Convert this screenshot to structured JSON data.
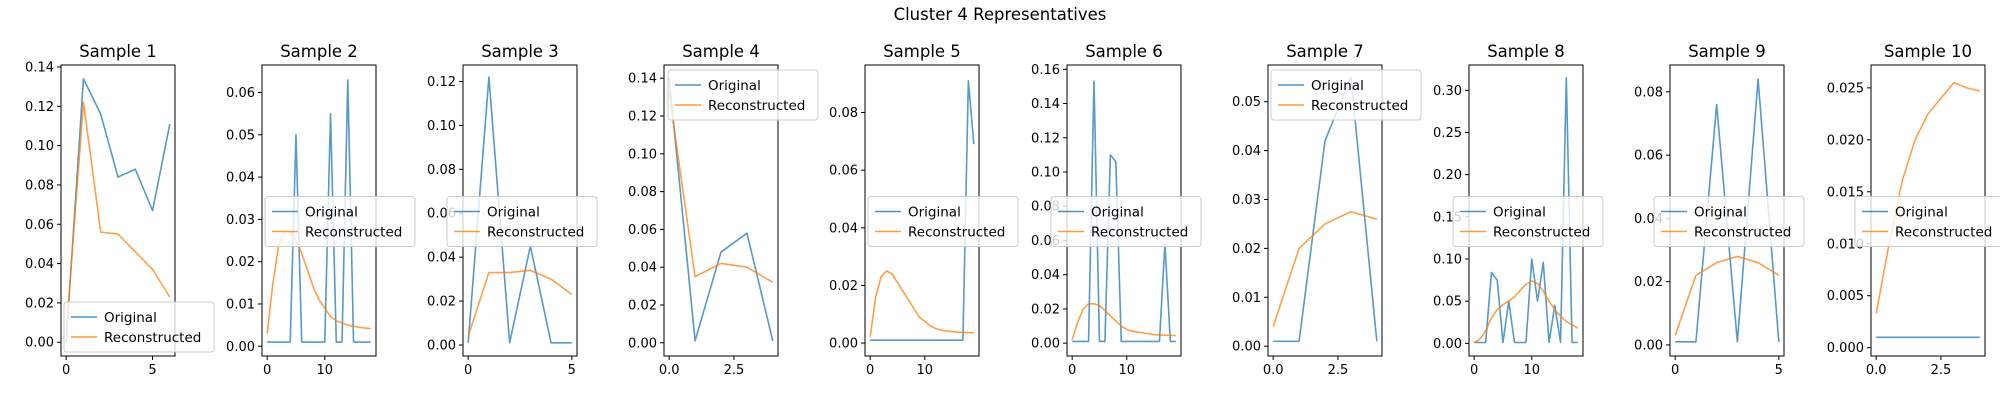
{
  "figure": {
    "title": "Cluster 4 Representatives"
  },
  "colors": {
    "original": "#1f77b4",
    "reconstructed": "#ff7f0e"
  },
  "chart_data": [
    {
      "type": "line",
      "title": "Sample 1",
      "legend": "lower-left",
      "xlim": [
        -0.3,
        6.3
      ],
      "ylim": [
        -0.007,
        0.141
      ],
      "xticks": [
        0,
        5
      ],
      "yticks": [
        0.0,
        0.02,
        0.04,
        0.06,
        0.08,
        0.1,
        0.12,
        0.14
      ],
      "ytick_labels": [
        "0.00",
        "0.02",
        "0.04",
        "0.06",
        "0.08",
        "0.10",
        "0.12",
        "0.14"
      ],
      "series": [
        {
          "name": "Original",
          "x": [
            0,
            1,
            2,
            3,
            4,
            5,
            6
          ],
          "y": [
            0.0,
            0.134,
            0.116,
            0.084,
            0.088,
            0.067,
            0.111
          ]
        },
        {
          "name": "Reconstructed",
          "x": [
            0,
            1,
            2,
            3,
            4,
            5,
            6
          ],
          "y": [
            0.005,
            0.122,
            0.056,
            0.055,
            0.046,
            0.037,
            0.023
          ]
        }
      ]
    },
    {
      "type": "line",
      "title": "Sample 2",
      "legend": "center-left",
      "xlim": [
        -0.9,
        18.9
      ],
      "ylim": [
        -0.0023,
        0.0665
      ],
      "xticks": [
        0,
        10
      ],
      "yticks": [
        0.0,
        0.01,
        0.02,
        0.03,
        0.04,
        0.05,
        0.06
      ],
      "ytick_labels": [
        "0.00",
        "0.01",
        "0.02",
        "0.03",
        "0.04",
        "0.05",
        "0.06"
      ],
      "series": [
        {
          "name": "Original",
          "x": [
            0,
            1,
            2,
            3,
            4,
            5,
            6,
            7,
            8,
            9,
            10,
            11,
            12,
            13,
            14,
            15,
            16,
            17,
            18
          ],
          "y": [
            0.001,
            0.001,
            0.001,
            0.001,
            0.001,
            0.05,
            0.001,
            0.001,
            0.001,
            0.001,
            0.001,
            0.055,
            0.001,
            0.001,
            0.063,
            0.001,
            0.001,
            0.001,
            0.001
          ]
        },
        {
          "name": "Reconstructed",
          "x": [
            0,
            1,
            2,
            3,
            4,
            5,
            6,
            7,
            8,
            9,
            10,
            11,
            12,
            13,
            14,
            15,
            16,
            17,
            18
          ],
          "y": [
            0.003,
            0.015,
            0.024,
            0.027,
            0.027,
            0.025,
            0.022,
            0.018,
            0.014,
            0.011,
            0.009,
            0.007,
            0.006,
            0.0055,
            0.005,
            0.0047,
            0.0045,
            0.0043,
            0.0042
          ]
        }
      ]
    },
    {
      "type": "line",
      "title": "Sample 3",
      "legend": "center",
      "xlim": [
        -0.25,
        5.25
      ],
      "ylim": [
        -0.005,
        0.1275
      ],
      "xticks": [
        0,
        5
      ],
      "yticks": [
        0.0,
        0.02,
        0.04,
        0.06,
        0.08,
        0.1,
        0.12
      ],
      "ytick_labels": [
        "0.00",
        "0.02",
        "0.04",
        "0.06",
        "0.08",
        "0.10",
        "0.12"
      ],
      "series": [
        {
          "name": "Original",
          "x": [
            0,
            1,
            2,
            3,
            4,
            5
          ],
          "y": [
            0.001,
            0.122,
            0.001,
            0.045,
            0.001,
            0.001
          ]
        },
        {
          "name": "Reconstructed",
          "x": [
            0,
            1,
            2,
            3,
            4,
            5
          ],
          "y": [
            0.004,
            0.033,
            0.033,
            0.034,
            0.03,
            0.023
          ]
        }
      ]
    },
    {
      "type": "line",
      "title": "Sample 4",
      "legend": "upper-right",
      "xlim": [
        -0.2,
        4.2
      ],
      "ylim": [
        -0.007,
        0.147
      ],
      "xticks": [
        0,
        2.5
      ],
      "xtick_labels": [
        "0.0",
        "2.5"
      ],
      "yticks": [
        0.0,
        0.02,
        0.04,
        0.06,
        0.08,
        0.1,
        0.12,
        0.14
      ],
      "ytick_labels": [
        "0.00",
        "0.02",
        "0.04",
        "0.06",
        "0.08",
        "0.10",
        "0.12",
        "0.14"
      ],
      "series": [
        {
          "name": "Original",
          "x": [
            0,
            1,
            2,
            3,
            4
          ],
          "y": [
            0.14,
            0.001,
            0.048,
            0.058,
            0.001
          ]
        },
        {
          "name": "Reconstructed",
          "x": [
            0,
            1,
            2,
            3,
            4
          ],
          "y": [
            0.132,
            0.035,
            0.042,
            0.04,
            0.032
          ]
        }
      ]
    },
    {
      "type": "line",
      "title": "Sample 5",
      "legend": "center-left",
      "xlim": [
        -0.95,
        19.95
      ],
      "ylim": [
        -0.0045,
        0.0965
      ],
      "xticks": [
        0,
        10
      ],
      "yticks": [
        0.0,
        0.02,
        0.04,
        0.06,
        0.08
      ],
      "ytick_labels": [
        "0.00",
        "0.02",
        "0.04",
        "0.06",
        "0.08"
      ],
      "series": [
        {
          "name": "Original",
          "x": [
            0,
            1,
            2,
            3,
            4,
            5,
            6,
            7,
            8,
            9,
            10,
            11,
            12,
            13,
            14,
            15,
            16,
            17,
            18,
            19
          ],
          "y": [
            0.001,
            0.001,
            0.001,
            0.001,
            0.001,
            0.001,
            0.001,
            0.001,
            0.001,
            0.001,
            0.001,
            0.001,
            0.001,
            0.001,
            0.001,
            0.001,
            0.001,
            0.001,
            0.091,
            0.069
          ]
        },
        {
          "name": "Reconstructed",
          "x": [
            0,
            1,
            2,
            3,
            4,
            5,
            6,
            7,
            8,
            9,
            10,
            11,
            12,
            13,
            14,
            15,
            16,
            17,
            18,
            19
          ],
          "y": [
            0.002,
            0.016,
            0.023,
            0.025,
            0.024,
            0.021,
            0.018,
            0.015,
            0.012,
            0.009,
            0.0075,
            0.006,
            0.005,
            0.0045,
            0.0042,
            0.004,
            0.0038,
            0.0037,
            0.0036,
            0.0035
          ]
        }
      ]
    },
    {
      "type": "line",
      "title": "Sample 6",
      "legend": "center",
      "xlim": [
        -0.95,
        19.95
      ],
      "ylim": [
        -0.0075,
        0.1625
      ],
      "xticks": [
        0,
        10
      ],
      "yticks": [
        0.0,
        0.02,
        0.04,
        0.06,
        0.08,
        0.1,
        0.12,
        0.14,
        0.16
      ],
      "ytick_labels": [
        "0.00",
        "0.02",
        "0.04",
        "0.06",
        "0.08",
        "0.10",
        "0.12",
        "0.14",
        "0.16"
      ],
      "series": [
        {
          "name": "Original",
          "x": [
            0,
            1,
            2,
            3,
            4,
            5,
            6,
            7,
            8,
            9,
            10,
            11,
            12,
            13,
            14,
            15,
            16,
            17,
            18,
            19
          ],
          "y": [
            0.001,
            0.001,
            0.001,
            0.001,
            0.153,
            0.001,
            0.001,
            0.11,
            0.106,
            0.001,
            0.001,
            0.001,
            0.001,
            0.001,
            0.001,
            0.001,
            0.001,
            0.058,
            0.001,
            0.001
          ]
        },
        {
          "name": "Reconstructed",
          "x": [
            0,
            1,
            2,
            3,
            4,
            5,
            6,
            7,
            8,
            9,
            10,
            11,
            12,
            13,
            14,
            15,
            16,
            17,
            18,
            19
          ],
          "y": [
            0.002,
            0.012,
            0.02,
            0.023,
            0.023,
            0.022,
            0.019,
            0.016,
            0.013,
            0.01,
            0.008,
            0.007,
            0.0065,
            0.006,
            0.0055,
            0.005,
            0.0048,
            0.0046,
            0.0045,
            0.0044
          ]
        }
      ]
    },
    {
      "type": "line",
      "title": "Sample 7",
      "legend": "upper-left",
      "xlim": [
        -0.2,
        4.2
      ],
      "ylim": [
        -0.002,
        0.0575
      ],
      "xticks": [
        0,
        2.5
      ],
      "xtick_labels": [
        "0.0",
        "2.5"
      ],
      "yticks": [
        0.0,
        0.01,
        0.02,
        0.03,
        0.04,
        0.05
      ],
      "ytick_labels": [
        "0.00",
        "0.01",
        "0.02",
        "0.03",
        "0.04",
        "0.05"
      ],
      "series": [
        {
          "name": "Original",
          "x": [
            0,
            1,
            2,
            3,
            4
          ],
          "y": [
            0.001,
            0.001,
            0.042,
            0.055,
            0.001
          ]
        },
        {
          "name": "Reconstructed",
          "x": [
            0,
            1,
            2,
            3,
            4
          ],
          "y": [
            0.004,
            0.02,
            0.025,
            0.0275,
            0.026
          ]
        }
      ]
    },
    {
      "type": "line",
      "title": "Sample 8",
      "legend": "center",
      "xlim": [
        -0.9,
        18.9
      ],
      "ylim": [
        -0.015,
        0.33
      ],
      "xticks": [
        0,
        10
      ],
      "yticks": [
        0.0,
        0.05,
        0.1,
        0.15,
        0.2,
        0.25,
        0.3
      ],
      "ytick_labels": [
        "0.00",
        "0.05",
        "0.10",
        "0.15",
        "0.20",
        "0.25",
        "0.30"
      ],
      "series": [
        {
          "name": "Original",
          "x": [
            0,
            1,
            2,
            3,
            4,
            5,
            6,
            7,
            8,
            9,
            10,
            11,
            12,
            13,
            14,
            15,
            16,
            17,
            18
          ],
          "y": [
            0.001,
            0.001,
            0.001,
            0.084,
            0.075,
            0.001,
            0.05,
            0.001,
            0.001,
            0.001,
            0.1,
            0.05,
            0.096,
            0.001,
            0.045,
            0.001,
            0.315,
            0.001,
            0.001
          ]
        },
        {
          "name": "Reconstructed",
          "x": [
            0,
            1,
            2,
            3,
            4,
            5,
            6,
            7,
            8,
            9,
            10,
            11,
            12,
            13,
            14,
            15,
            16,
            17,
            18
          ],
          "y": [
            0.001,
            0.005,
            0.015,
            0.03,
            0.04,
            0.046,
            0.05,
            0.055,
            0.063,
            0.07,
            0.074,
            0.071,
            0.062,
            0.05,
            0.04,
            0.032,
            0.026,
            0.022,
            0.018
          ]
        }
      ]
    },
    {
      "type": "line",
      "title": "Sample 9",
      "legend": "center",
      "xlim": [
        -0.25,
        5.25
      ],
      "ylim": [
        -0.0035,
        0.0885
      ],
      "xticks": [
        0,
        5
      ],
      "yticks": [
        0.0,
        0.02,
        0.04,
        0.06,
        0.08
      ],
      "ytick_labels": [
        "0.00",
        "0.02",
        "0.04",
        "0.06",
        "0.08"
      ],
      "series": [
        {
          "name": "Original",
          "x": [
            0,
            1,
            2,
            3,
            4,
            5
          ],
          "y": [
            0.001,
            0.001,
            0.076,
            0.001,
            0.084,
            0.001
          ]
        },
        {
          "name": "Reconstructed",
          "x": [
            0,
            1,
            2,
            3,
            4,
            5
          ],
          "y": [
            0.003,
            0.022,
            0.026,
            0.028,
            0.026,
            0.022
          ]
        }
      ]
    },
    {
      "type": "line",
      "title": "Sample 10",
      "legend": "center",
      "xlim": [
        -0.2,
        4.2
      ],
      "ylim": [
        -0.0008,
        0.0272
      ],
      "xticks": [
        0,
        2.5
      ],
      "xtick_labels": [
        "0.0",
        "2.5"
      ],
      "yticks": [
        0.0,
        0.005,
        0.01,
        0.015,
        0.02,
        0.025
      ],
      "ytick_labels": [
        "0.000",
        "0.005",
        "0.010",
        "0.015",
        "0.020",
        "0.025"
      ],
      "series": [
        {
          "name": "Original",
          "x": [
            0,
            1,
            2,
            3,
            4
          ],
          "y": [
            0.001,
            0.001,
            0.001,
            0.001,
            0.001
          ]
        },
        {
          "name": "Reconstructed",
          "x": [
            0,
            0.5,
            1,
            1.5,
            2,
            2.5,
            3,
            3.5,
            4
          ],
          "y": [
            0.0033,
            0.01,
            0.016,
            0.02,
            0.0225,
            0.024,
            0.0255,
            0.025,
            0.0247
          ]
        }
      ]
    }
  ]
}
